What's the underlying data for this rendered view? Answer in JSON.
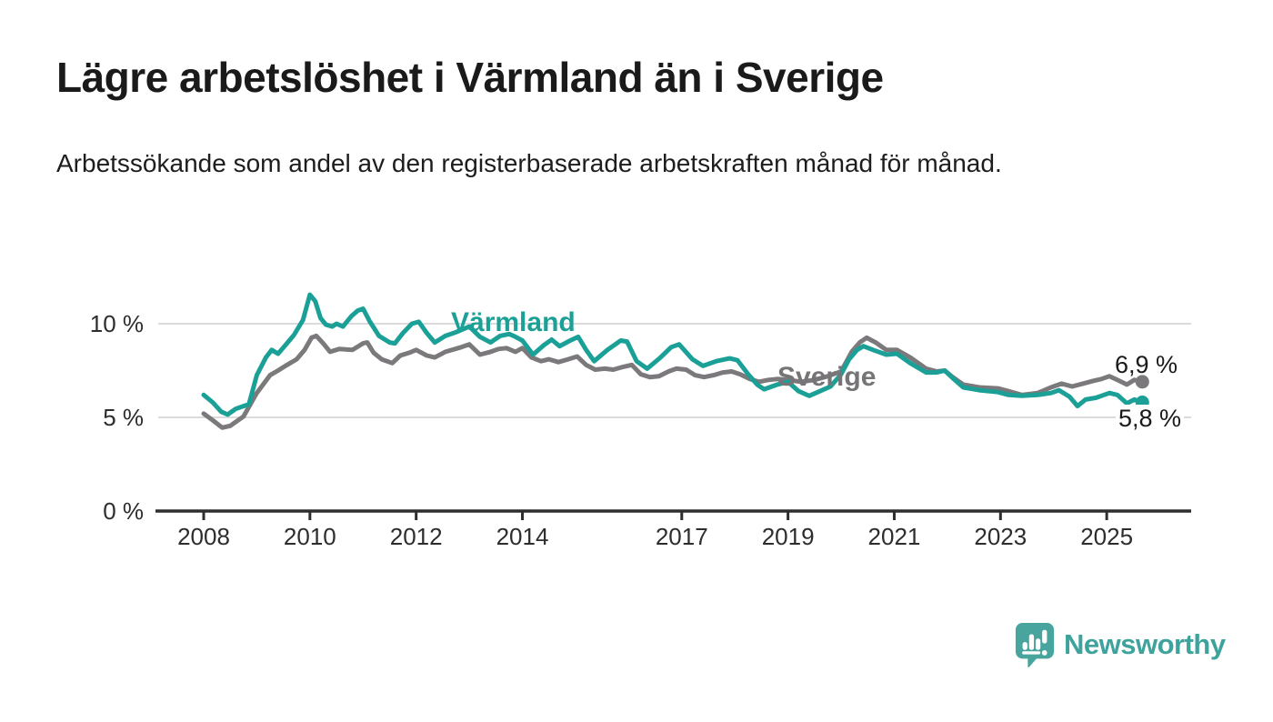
{
  "header": {
    "title": "Lägre arbetslöshet i Värmland än i Sverige",
    "subtitle": "Arbetssökande som andel av den registerbaserade arbetskraften månad för månad."
  },
  "chart_data": {
    "type": "line",
    "title": "Lägre arbetslöshet i Värmland än i Sverige",
    "subtitle": "Arbetssökande som andel av den registerbaserade arbetskraften månad för månad.",
    "x_unit": "decimal year (monthly observations)",
    "xlim": [
      2007.1,
      2026.6
    ],
    "ylim": [
      0,
      12
    ],
    "grid": "horizontal",
    "legend_position": "inline-labels",
    "y_ticks": [
      {
        "value": 0,
        "label": "0 %"
      },
      {
        "value": 5,
        "label": "5 %"
      },
      {
        "value": 10,
        "label": "10 %"
      }
    ],
    "x_ticks": [
      {
        "year": 2008,
        "label": "2008"
      },
      {
        "year": 2010,
        "label": "2010"
      },
      {
        "year": 2012,
        "label": "2012"
      },
      {
        "year": 2014,
        "label": "2014"
      },
      {
        "year": 2017,
        "label": "2017"
      },
      {
        "year": 2019,
        "label": "2019"
      },
      {
        "year": 2021,
        "label": "2021"
      },
      {
        "year": 2023,
        "label": "2023"
      },
      {
        "year": 2025,
        "label": "2025"
      }
    ],
    "series": [
      {
        "name": "Sverige",
        "color": "#7b797b",
        "end_value": 6.9,
        "end_label": "6,9 %",
        "points": [
          [
            2008.0,
            5.2
          ],
          [
            2008.17,
            4.85
          ],
          [
            2008.35,
            4.45
          ],
          [
            2008.5,
            4.55
          ],
          [
            2008.75,
            5.05
          ],
          [
            2009.0,
            6.3
          ],
          [
            2009.25,
            7.25
          ],
          [
            2009.4,
            7.5
          ],
          [
            2009.57,
            7.8
          ],
          [
            2009.75,
            8.1
          ],
          [
            2009.9,
            8.6
          ],
          [
            2010.03,
            9.25
          ],
          [
            2010.12,
            9.35
          ],
          [
            2010.25,
            8.95
          ],
          [
            2010.38,
            8.5
          ],
          [
            2010.55,
            8.65
          ],
          [
            2010.8,
            8.6
          ],
          [
            2011.0,
            8.95
          ],
          [
            2011.08,
            9.0
          ],
          [
            2011.2,
            8.45
          ],
          [
            2011.35,
            8.1
          ],
          [
            2011.55,
            7.9
          ],
          [
            2011.7,
            8.3
          ],
          [
            2011.87,
            8.45
          ],
          [
            2012.0,
            8.6
          ],
          [
            2012.2,
            8.3
          ],
          [
            2012.35,
            8.2
          ],
          [
            2012.55,
            8.5
          ],
          [
            2012.85,
            8.75
          ],
          [
            2013.0,
            8.9
          ],
          [
            2013.2,
            8.35
          ],
          [
            2013.4,
            8.5
          ],
          [
            2013.55,
            8.65
          ],
          [
            2013.7,
            8.7
          ],
          [
            2013.87,
            8.5
          ],
          [
            2014.0,
            8.7
          ],
          [
            2014.17,
            8.2
          ],
          [
            2014.35,
            8.0
          ],
          [
            2014.5,
            8.1
          ],
          [
            2014.68,
            7.95
          ],
          [
            2014.86,
            8.1
          ],
          [
            2015.03,
            8.25
          ],
          [
            2015.2,
            7.8
          ],
          [
            2015.37,
            7.55
          ],
          [
            2015.55,
            7.6
          ],
          [
            2015.71,
            7.55
          ],
          [
            2015.9,
            7.7
          ],
          [
            2016.06,
            7.8
          ],
          [
            2016.23,
            7.3
          ],
          [
            2016.4,
            7.15
          ],
          [
            2016.57,
            7.2
          ],
          [
            2016.75,
            7.45
          ],
          [
            2016.9,
            7.6
          ],
          [
            2017.08,
            7.55
          ],
          [
            2017.25,
            7.25
          ],
          [
            2017.42,
            7.15
          ],
          [
            2017.6,
            7.25
          ],
          [
            2017.77,
            7.4
          ],
          [
            2017.94,
            7.45
          ],
          [
            2018.1,
            7.3
          ],
          [
            2018.28,
            7.05
          ],
          [
            2018.45,
            6.9
          ],
          [
            2018.63,
            7.0
          ],
          [
            2018.8,
            7.05
          ],
          [
            2019.0,
            7.0
          ],
          [
            2019.25,
            6.9
          ],
          [
            2019.5,
            7.0
          ],
          [
            2019.75,
            7.2
          ],
          [
            2020.0,
            7.45
          ],
          [
            2020.2,
            8.5
          ],
          [
            2020.35,
            9.0
          ],
          [
            2020.48,
            9.25
          ],
          [
            2020.65,
            9.0
          ],
          [
            2020.85,
            8.6
          ],
          [
            2021.05,
            8.6
          ],
          [
            2021.3,
            8.2
          ],
          [
            2021.6,
            7.6
          ],
          [
            2021.8,
            7.45
          ],
          [
            2021.95,
            7.5
          ],
          [
            2022.1,
            7.15
          ],
          [
            2022.3,
            6.75
          ],
          [
            2022.6,
            6.6
          ],
          [
            2022.95,
            6.55
          ],
          [
            2023.15,
            6.4
          ],
          [
            2023.4,
            6.2
          ],
          [
            2023.7,
            6.3
          ],
          [
            2023.95,
            6.6
          ],
          [
            2024.15,
            6.8
          ],
          [
            2024.35,
            6.65
          ],
          [
            2024.55,
            6.8
          ],
          [
            2024.75,
            6.95
          ],
          [
            2024.9,
            7.05
          ],
          [
            2025.05,
            7.2
          ],
          [
            2025.2,
            7.0
          ],
          [
            2025.38,
            6.75
          ],
          [
            2025.52,
            7.0
          ],
          [
            2025.67,
            6.9
          ]
        ]
      },
      {
        "name": "Värmland",
        "color": "#1aa096",
        "end_value": 5.8,
        "end_label": "5,8 %",
        "points": [
          [
            2008.0,
            6.2
          ],
          [
            2008.17,
            5.8
          ],
          [
            2008.33,
            5.3
          ],
          [
            2008.45,
            5.15
          ],
          [
            2008.6,
            5.45
          ],
          [
            2008.75,
            5.6
          ],
          [
            2008.85,
            5.7
          ],
          [
            2009.0,
            7.25
          ],
          [
            2009.17,
            8.2
          ],
          [
            2009.28,
            8.6
          ],
          [
            2009.4,
            8.4
          ],
          [
            2009.55,
            8.9
          ],
          [
            2009.7,
            9.4
          ],
          [
            2009.87,
            10.2
          ],
          [
            2010.0,
            11.55
          ],
          [
            2010.1,
            11.2
          ],
          [
            2010.2,
            10.3
          ],
          [
            2010.3,
            9.95
          ],
          [
            2010.42,
            9.85
          ],
          [
            2010.5,
            10.0
          ],
          [
            2010.62,
            9.85
          ],
          [
            2010.78,
            10.4
          ],
          [
            2010.9,
            10.7
          ],
          [
            2011.0,
            10.8
          ],
          [
            2011.13,
            10.1
          ],
          [
            2011.3,
            9.35
          ],
          [
            2011.5,
            9.0
          ],
          [
            2011.6,
            8.95
          ],
          [
            2011.75,
            9.5
          ],
          [
            2011.92,
            10.0
          ],
          [
            2012.05,
            10.1
          ],
          [
            2012.2,
            9.5
          ],
          [
            2012.35,
            9.0
          ],
          [
            2012.55,
            9.35
          ],
          [
            2012.75,
            9.55
          ],
          [
            2013.0,
            9.85
          ],
          [
            2013.2,
            9.3
          ],
          [
            2013.4,
            9.0
          ],
          [
            2013.58,
            9.35
          ],
          [
            2013.75,
            9.45
          ],
          [
            2013.87,
            9.3
          ],
          [
            2014.0,
            9.1
          ],
          [
            2014.2,
            8.35
          ],
          [
            2014.4,
            8.85
          ],
          [
            2014.55,
            9.15
          ],
          [
            2014.7,
            8.8
          ],
          [
            2014.9,
            9.1
          ],
          [
            2015.05,
            9.3
          ],
          [
            2015.2,
            8.6
          ],
          [
            2015.35,
            8.0
          ],
          [
            2015.6,
            8.6
          ],
          [
            2015.85,
            9.1
          ],
          [
            2015.97,
            9.05
          ],
          [
            2016.15,
            8.0
          ],
          [
            2016.35,
            7.6
          ],
          [
            2016.6,
            8.2
          ],
          [
            2016.8,
            8.75
          ],
          [
            2016.95,
            8.9
          ],
          [
            2017.2,
            8.1
          ],
          [
            2017.4,
            7.75
          ],
          [
            2017.65,
            8.0
          ],
          [
            2017.9,
            8.15
          ],
          [
            2018.05,
            8.05
          ],
          [
            2018.25,
            7.3
          ],
          [
            2018.42,
            6.75
          ],
          [
            2018.55,
            6.5
          ],
          [
            2018.8,
            6.75
          ],
          [
            2019.0,
            6.9
          ],
          [
            2019.2,
            6.4
          ],
          [
            2019.4,
            6.15
          ],
          [
            2019.6,
            6.4
          ],
          [
            2019.8,
            6.65
          ],
          [
            2020.0,
            7.3
          ],
          [
            2020.15,
            8.1
          ],
          [
            2020.3,
            8.6
          ],
          [
            2020.42,
            8.8
          ],
          [
            2020.6,
            8.6
          ],
          [
            2020.85,
            8.35
          ],
          [
            2021.05,
            8.4
          ],
          [
            2021.3,
            7.9
          ],
          [
            2021.6,
            7.4
          ],
          [
            2021.8,
            7.4
          ],
          [
            2021.95,
            7.5
          ],
          [
            2022.1,
            7.1
          ],
          [
            2022.3,
            6.6
          ],
          [
            2022.6,
            6.45
          ],
          [
            2022.95,
            6.35
          ],
          [
            2023.15,
            6.2
          ],
          [
            2023.4,
            6.15
          ],
          [
            2023.7,
            6.2
          ],
          [
            2023.95,
            6.3
          ],
          [
            2024.1,
            6.45
          ],
          [
            2024.3,
            6.1
          ],
          [
            2024.45,
            5.6
          ],
          [
            2024.6,
            5.95
          ],
          [
            2024.8,
            6.05
          ],
          [
            2024.95,
            6.2
          ],
          [
            2025.05,
            6.3
          ],
          [
            2025.2,
            6.2
          ],
          [
            2025.38,
            5.75
          ],
          [
            2025.52,
            5.95
          ],
          [
            2025.67,
            5.8
          ]
        ]
      }
    ],
    "colors": {
      "gridline": "#dbdbdb",
      "axis": "#2e2e2e",
      "axis_text": "#2d2d2d",
      "varmland": "#1aa096",
      "sverige": "#7b797b",
      "brand_teal": "#3ea39c"
    }
  },
  "footer": {
    "brand": "Newsworthy"
  }
}
